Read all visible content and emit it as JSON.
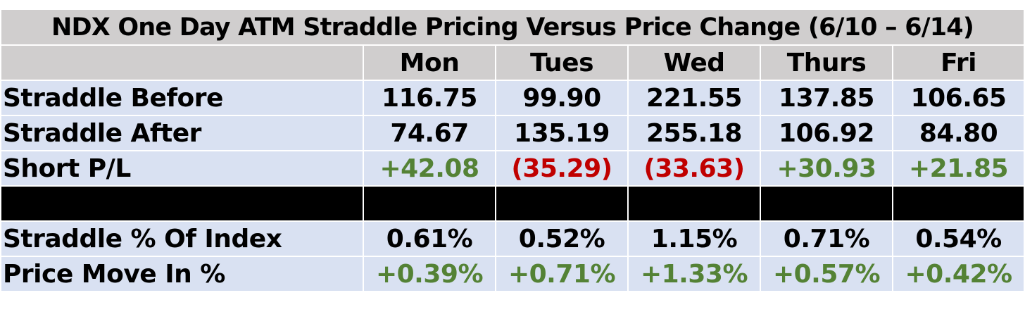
{
  "chart_data": {
    "type": "table",
    "title": "NDX One Day ATM Straddle Pricing Versus Price Change (6/10 – 6/14)",
    "columns": [
      "Mon",
      "Tues",
      "Wed",
      "Thurs",
      "Fri"
    ],
    "rows": [
      {
        "label": "Straddle Before",
        "values": [
          "116.75",
          "99.90",
          "221.55",
          "137.85",
          "106.65"
        ],
        "tone": [
          "neutral",
          "neutral",
          "neutral",
          "neutral",
          "neutral"
        ]
      },
      {
        "label": "Straddle After",
        "values": [
          "74.67",
          "135.19",
          "255.18",
          "106.92",
          "84.80"
        ],
        "tone": [
          "neutral",
          "neutral",
          "neutral",
          "neutral",
          "neutral"
        ]
      },
      {
        "label": "Short P/L",
        "values": [
          "+42.08",
          "(35.29)",
          "(33.63)",
          "+30.93",
          "+21.85"
        ],
        "tone": [
          "positive",
          "negative",
          "negative",
          "positive",
          "positive"
        ]
      },
      {
        "label": "Straddle % Of Index",
        "values": [
          "0.61%",
          "0.52%",
          "1.15%",
          "0.71%",
          "0.54%"
        ],
        "tone": [
          "neutral",
          "neutral",
          "neutral",
          "neutral",
          "neutral"
        ]
      },
      {
        "label": "Price Move In %",
        "values": [
          "+0.39%",
          "+0.71%",
          "+1.33%",
          "+0.57%",
          "+0.42%"
        ],
        "tone": [
          "positive",
          "positive",
          "positive",
          "positive",
          "positive"
        ]
      }
    ],
    "separator_after_row": 3
  },
  "colors": {
    "header_bg": "#d0cece",
    "row_bg": "#d9e1f2",
    "separator": "#000000",
    "positive": "#548235",
    "negative": "#c00000"
  }
}
